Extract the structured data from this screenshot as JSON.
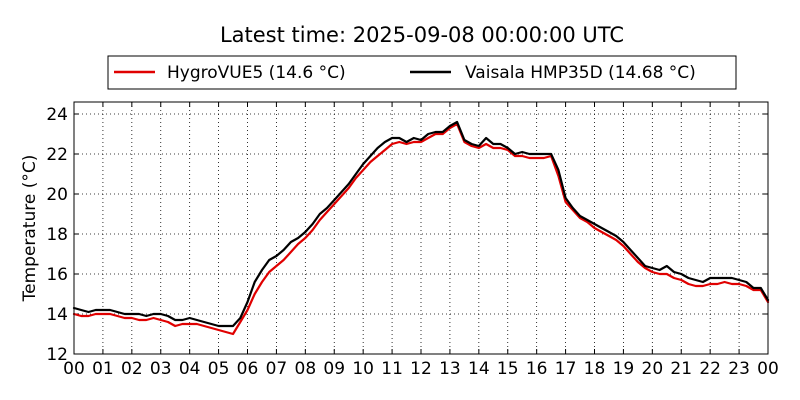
{
  "chart_data": {
    "type": "line",
    "title": "Latest time: 2025-09-08 00:00:00 UTC",
    "xlabel": "",
    "ylabel": "Temperature (°C)",
    "x_tick_labels": [
      "00",
      "01",
      "02",
      "03",
      "04",
      "05",
      "06",
      "07",
      "08",
      "09",
      "10",
      "11",
      "12",
      "13",
      "14",
      "15",
      "16",
      "17",
      "18",
      "19",
      "20",
      "21",
      "22",
      "23",
      "00"
    ],
    "x_unit": "hours UTC",
    "xlim": [
      0,
      24
    ],
    "ylim": [
      12,
      24.6
    ],
    "y_ticks": [
      12,
      14,
      16,
      18,
      20,
      22,
      24
    ],
    "grid": true,
    "legend_position": "top",
    "series": [
      {
        "name": "HygroVUE5 (14.6 °C)",
        "color": "#e00000",
        "x": [
          0,
          0.25,
          0.5,
          0.75,
          1,
          1.25,
          1.5,
          1.75,
          2,
          2.25,
          2.5,
          2.75,
          3,
          3.25,
          3.5,
          3.75,
          4,
          4.25,
          4.5,
          4.75,
          5,
          5.25,
          5.5,
          5.75,
          6,
          6.25,
          6.5,
          6.75,
          7,
          7.25,
          7.5,
          7.75,
          8,
          8.25,
          8.5,
          8.75,
          9,
          9.25,
          9.5,
          9.75,
          10,
          10.25,
          10.5,
          10.75,
          11,
          11.25,
          11.5,
          11.75,
          12,
          12.25,
          12.5,
          12.75,
          13,
          13.25,
          13.5,
          13.75,
          14,
          14.25,
          14.5,
          14.75,
          15,
          15.25,
          15.5,
          15.75,
          16,
          16.25,
          16.5,
          16.75,
          17,
          17.25,
          17.5,
          17.75,
          18,
          18.25,
          18.5,
          18.75,
          19,
          19.25,
          19.5,
          19.75,
          20,
          20.25,
          20.5,
          20.75,
          21,
          21.25,
          21.5,
          21.75,
          22,
          22.25,
          22.5,
          22.75,
          23,
          23.25,
          23.5,
          23.75,
          24
        ],
        "values": [
          14.0,
          13.9,
          13.9,
          14.0,
          14.0,
          14.0,
          13.9,
          13.8,
          13.8,
          13.7,
          13.7,
          13.8,
          13.7,
          13.6,
          13.4,
          13.5,
          13.5,
          13.5,
          13.4,
          13.3,
          13.2,
          13.1,
          13.0,
          13.6,
          14.2,
          15.0,
          15.6,
          16.1,
          16.4,
          16.7,
          17.1,
          17.5,
          17.8,
          18.2,
          18.7,
          19.1,
          19.5,
          19.9,
          20.3,
          20.8,
          21.2,
          21.6,
          21.9,
          22.2,
          22.5,
          22.6,
          22.5,
          22.6,
          22.6,
          22.8,
          23.0,
          23.0,
          23.3,
          23.5,
          22.6,
          22.4,
          22.3,
          22.5,
          22.3,
          22.3,
          22.2,
          21.9,
          21.9,
          21.8,
          21.8,
          21.8,
          21.9,
          20.9,
          19.6,
          19.2,
          18.8,
          18.6,
          18.3,
          18.1,
          17.9,
          17.7,
          17.4,
          17.0,
          16.6,
          16.3,
          16.1,
          16.0,
          16.0,
          15.8,
          15.7,
          15.5,
          15.4,
          15.4,
          15.5,
          15.5,
          15.6,
          15.5,
          15.5,
          15.4,
          15.2,
          15.2,
          14.6
        ]
      },
      {
        "name": "Vaisala HMP35D (14.68 °C)",
        "color": "#000000",
        "x": [
          0,
          0.25,
          0.5,
          0.75,
          1,
          1.25,
          1.5,
          1.75,
          2,
          2.25,
          2.5,
          2.75,
          3,
          3.25,
          3.5,
          3.75,
          4,
          4.25,
          4.5,
          4.75,
          5,
          5.25,
          5.5,
          5.75,
          6,
          6.25,
          6.5,
          6.75,
          7,
          7.25,
          7.5,
          7.75,
          8,
          8.25,
          8.5,
          8.75,
          9,
          9.25,
          9.5,
          9.75,
          10,
          10.25,
          10.5,
          10.75,
          11,
          11.25,
          11.5,
          11.75,
          12,
          12.25,
          12.5,
          12.75,
          13,
          13.25,
          13.5,
          13.75,
          14,
          14.25,
          14.5,
          14.75,
          15,
          15.25,
          15.5,
          15.75,
          16,
          16.25,
          16.5,
          16.75,
          17,
          17.25,
          17.5,
          17.75,
          18,
          18.25,
          18.5,
          18.75,
          19,
          19.25,
          19.5,
          19.75,
          20,
          20.25,
          20.5,
          20.75,
          21,
          21.25,
          21.5,
          21.75,
          22,
          22.25,
          22.5,
          22.75,
          23,
          23.25,
          23.5,
          23.75,
          24
        ],
        "values": [
          14.3,
          14.2,
          14.1,
          14.2,
          14.2,
          14.2,
          14.1,
          14.0,
          14.0,
          14.0,
          13.9,
          14.0,
          14.0,
          13.9,
          13.7,
          13.7,
          13.8,
          13.7,
          13.6,
          13.5,
          13.4,
          13.4,
          13.4,
          13.8,
          14.6,
          15.6,
          16.2,
          16.7,
          16.9,
          17.2,
          17.6,
          17.8,
          18.1,
          18.5,
          19.0,
          19.3,
          19.7,
          20.1,
          20.5,
          21.0,
          21.5,
          21.9,
          22.3,
          22.6,
          22.8,
          22.8,
          22.6,
          22.8,
          22.7,
          23.0,
          23.1,
          23.1,
          23.4,
          23.6,
          22.7,
          22.5,
          22.4,
          22.8,
          22.5,
          22.5,
          22.3,
          22.0,
          22.1,
          22.0,
          22.0,
          22.0,
          22.0,
          21.2,
          19.8,
          19.3,
          18.9,
          18.7,
          18.5,
          18.3,
          18.1,
          17.9,
          17.6,
          17.2,
          16.8,
          16.4,
          16.3,
          16.2,
          16.4,
          16.1,
          16.0,
          15.8,
          15.7,
          15.6,
          15.8,
          15.8,
          15.8,
          15.8,
          15.7,
          15.6,
          15.3,
          15.3,
          14.7
        ]
      }
    ]
  }
}
